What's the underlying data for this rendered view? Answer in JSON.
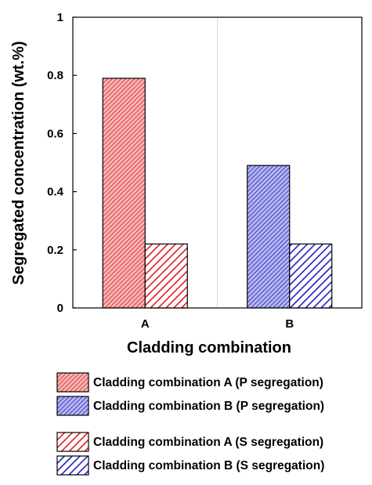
{
  "chart_data": {
    "type": "bar",
    "categories": [
      "A",
      "B"
    ],
    "xlabel": "Cladding combination",
    "ylabel": "Segregated concentration (wt.%)",
    "ylim": [
      0,
      1
    ],
    "yticks": [
      0,
      0.2,
      0.4,
      0.6,
      0.8,
      1
    ],
    "ytick_labels": [
      "0",
      "0.2",
      "0.4",
      "0.6",
      "0.8",
      "1"
    ],
    "grid": "vertical separator between categories",
    "legend_placement": "below-plot",
    "bars": [
      {
        "name": "Cladding combination A (P segregation)",
        "category": "A",
        "value": 0.79,
        "color": "#e41a1c",
        "fill": "#f4b6b6",
        "pattern": "fine-diagonal"
      },
      {
        "name": "Cladding combination A (S segregation)",
        "category": "A",
        "value": 0.22,
        "color": "#e41a1c",
        "fill": "#ffffff",
        "pattern": "coarse-diagonal"
      },
      {
        "name": "Cladding combination B (P segregation)",
        "category": "B",
        "value": 0.49,
        "color": "#1f1fbf",
        "fill": "#b6b6f0",
        "pattern": "fine-diagonal"
      },
      {
        "name": "Cladding combination B (S segregation)",
        "category": "B",
        "value": 0.22,
        "color": "#1f1fbf",
        "fill": "#ffffff",
        "pattern": "coarse-diagonal"
      }
    ],
    "legend": [
      {
        "label": "Cladding combination A (P segregation)",
        "bar": 0
      },
      {
        "label": "Cladding combination B (P segregation)",
        "bar": 2
      },
      {
        "label": "Cladding combination A (S segregation)",
        "bar": 1
      },
      {
        "label": "Cladding combination B (S segregation)",
        "bar": 3
      }
    ]
  }
}
